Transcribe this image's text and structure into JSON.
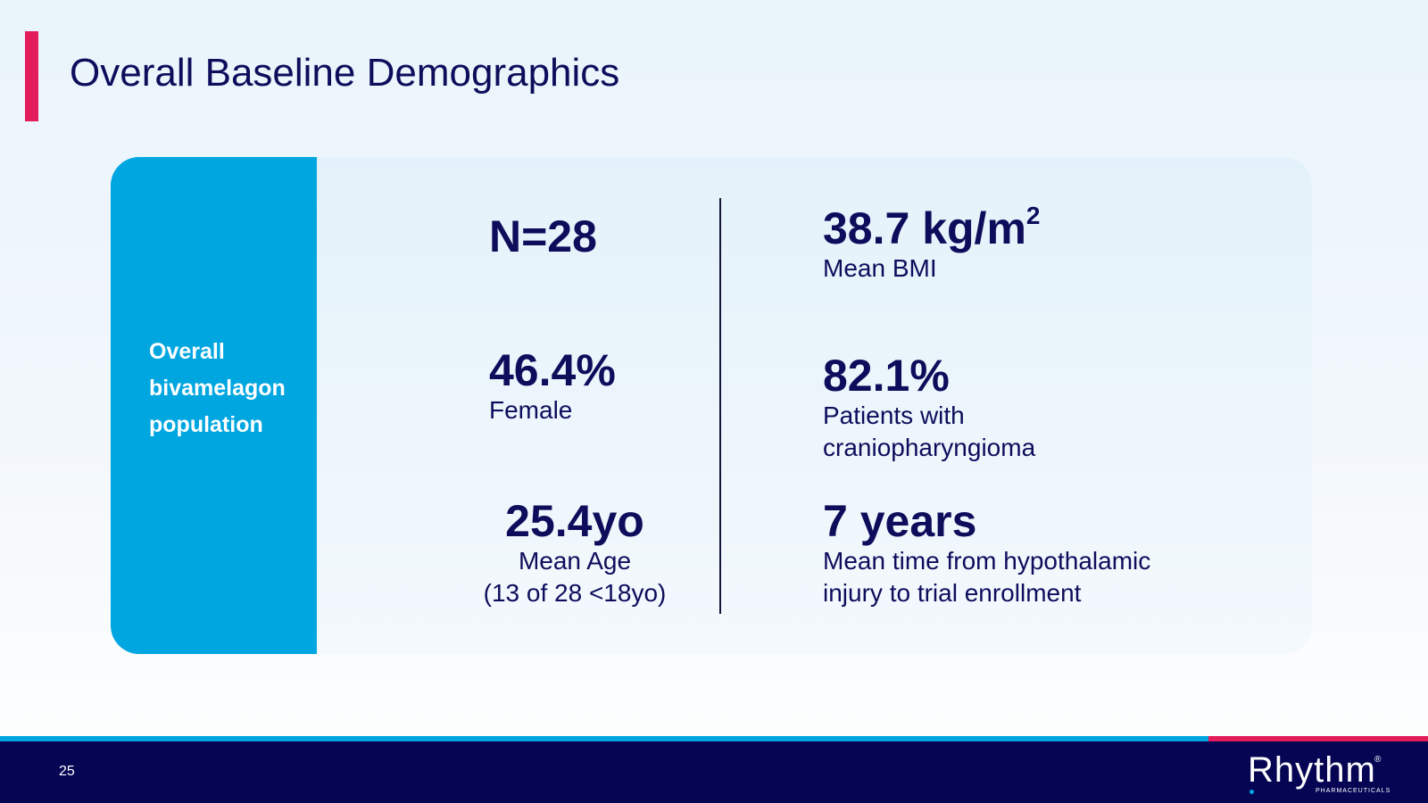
{
  "slide": {
    "title": "Overall Baseline Demographics",
    "page_number": "25"
  },
  "panel": {
    "side_label_lines": [
      "Overall",
      "bivamelagon",
      "population"
    ]
  },
  "stats": {
    "n": {
      "value": "N=28"
    },
    "female": {
      "value": "46.4%",
      "label": "Female"
    },
    "age": {
      "value": "25.4yo",
      "label_line1": "Mean Age",
      "label_line2": "(13 of 28 <18yo)"
    },
    "bmi": {
      "value": "38.7 kg/m",
      "unit_superscript": "2",
      "label": "Mean BMI"
    },
    "craniopharyngioma": {
      "value": "82.1%",
      "label_line1": "Patients with",
      "label_line2": "craniopharyngioma"
    },
    "years": {
      "value": "7 years",
      "label_line1": "Mean time from hypothalamic",
      "label_line2": "injury to trial enrollment"
    }
  },
  "footer": {
    "logo_text": "Rhythm",
    "logo_mark": "®",
    "logo_subtext": "PHARMACEUTICALS"
  },
  "colors": {
    "title_accent": "#e31c5b",
    "panel_side": "#00a6e0",
    "text_navy": "#0d0d5c",
    "footer_bar": "#050554",
    "footer_stripe_blue": "#00a6e0",
    "footer_stripe_red": "#e31c5b"
  }
}
